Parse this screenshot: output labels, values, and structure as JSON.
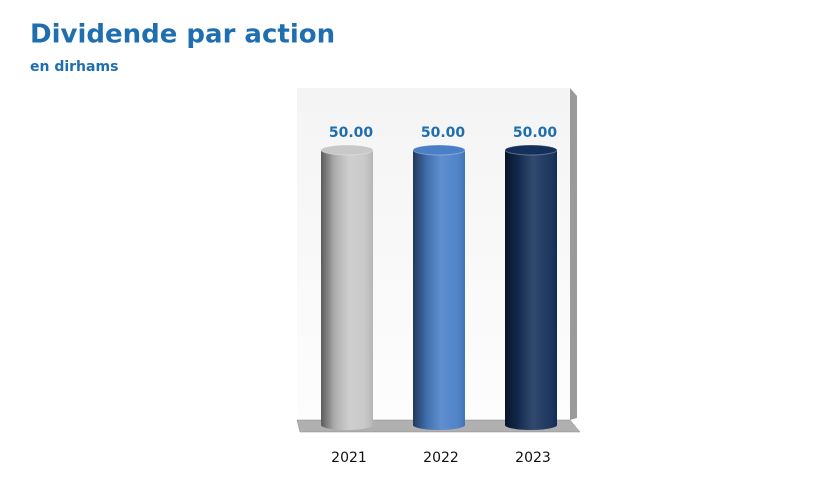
{
  "chart_data": {
    "type": "bar",
    "title": "Dividende par action",
    "subtitle": "en dirhams",
    "categories": [
      "2021",
      "2022",
      "2023"
    ],
    "values": [
      50,
      50,
      50
    ],
    "value_labels": [
      "50.00",
      "50.00",
      "50.00"
    ],
    "colors": [
      "#c8c8c8",
      "#4a7fc8",
      "#14305a"
    ],
    "ylim": [
      0,
      60
    ]
  }
}
